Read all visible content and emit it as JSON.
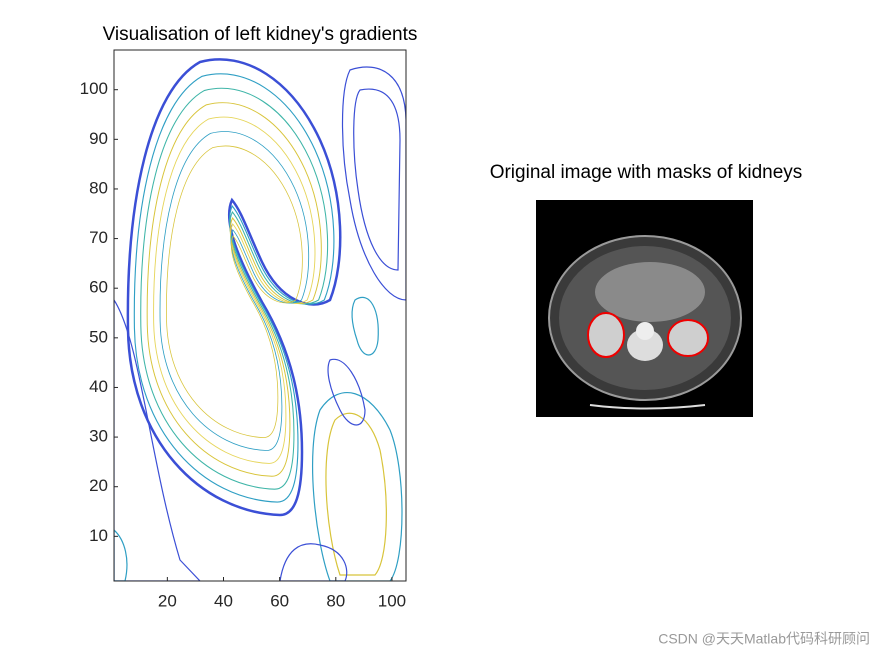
{
  "chart_data": [
    {
      "type": "contour",
      "title": "Visualisation of left kidney's gradients",
      "xlim": [
        1,
        105
      ],
      "ylim": [
        1,
        108
      ],
      "xticks": [
        20,
        40,
        60,
        80,
        100
      ],
      "yticks": [
        10,
        20,
        30,
        40,
        50,
        60,
        70,
        80,
        90,
        100
      ]
    },
    {
      "type": "image",
      "title": "Original image with masks of kidneys"
    }
  ],
  "watermark": "CSDN @天天Matlab代码科研顾问"
}
